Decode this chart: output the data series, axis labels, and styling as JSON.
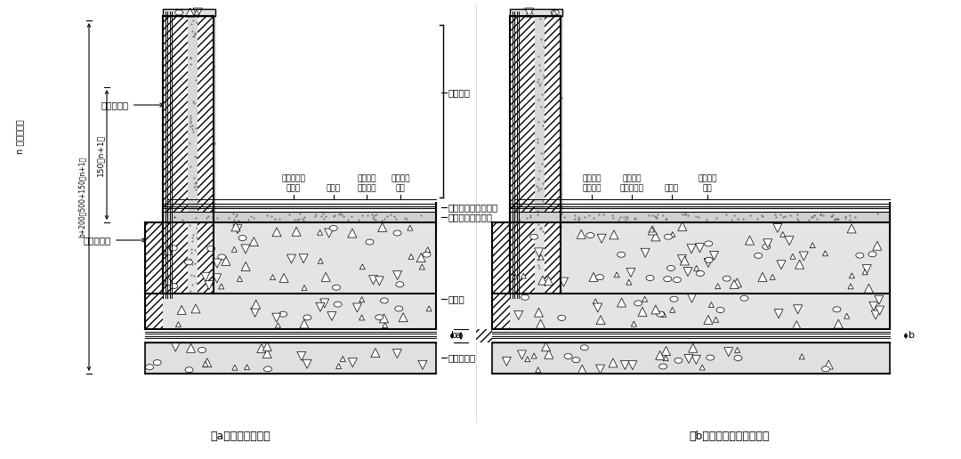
{
  "title_a": "（a）基础底板施工",
  "title_b": "（b）基础底板及墙体施工",
  "labels_right_a": [
    "基础底板",
    "细石混凝土保护层",
    "沥青油毡保护隔离层",
    "防水层",
    "混凝土垫层"
  ],
  "label_left_top": "n 为卷材层数",
  "label_dim1": "150（n+1）",
  "label_dim2": "b+200～500+150（n+1）",
  "label_clinshi": "临时保护墙",
  "label_yongjiu": "永久保护墙",
  "labels_top_a": [
    [
      "细",
      "石",
      "混",
      "凝",
      "土",
      "保",
      "护",
      "层"
    ],
    [
      "防",
      "水",
      "层"
    ],
    [
      "细",
      "石",
      "混",
      "凝",
      "土",
      "保",
      "护",
      "层"
    ],
    [
      "连",
      "续",
      "铺",
      "设",
      "施",
      "工"
    ]
  ],
  "labels_top_b": [
    [
      "细",
      "石",
      "混",
      "凝",
      "土",
      "保",
      "护",
      "层"
    ],
    [
      "沥",
      "青",
      "油",
      "毡",
      "保",
      "护",
      "隔",
      "离",
      "层"
    ],
    [
      "防",
      "水",
      "层"
    ],
    [
      "连",
      "续",
      "铺",
      "设",
      "施",
      "工"
    ]
  ],
  "bg_color": "#ffffff"
}
